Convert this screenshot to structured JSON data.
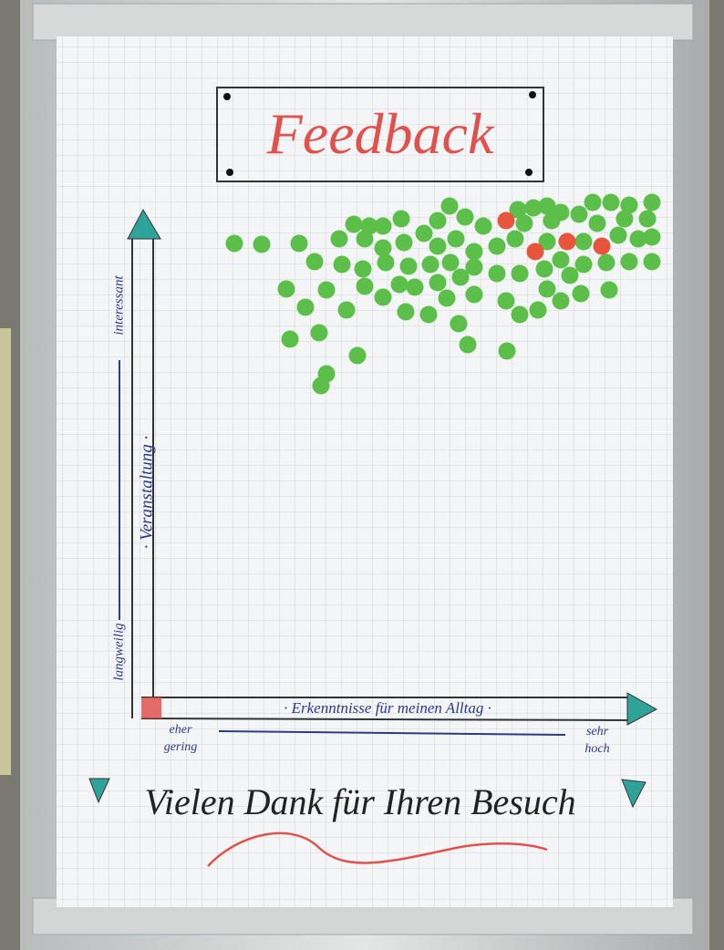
{
  "board": {
    "title": "Feedback",
    "y_axis": {
      "label": "· Veranstaltung ·",
      "top": "interessant",
      "bottom": "langweilig"
    },
    "x_axis": {
      "label": "· Erkenntnisse für meinen Alltag ·",
      "left": [
        "eher",
        "gering"
      ],
      "right": [
        "sehr",
        "hoch"
      ]
    },
    "footer": "Vielen Dank für Ihren Besuch"
  }
}
